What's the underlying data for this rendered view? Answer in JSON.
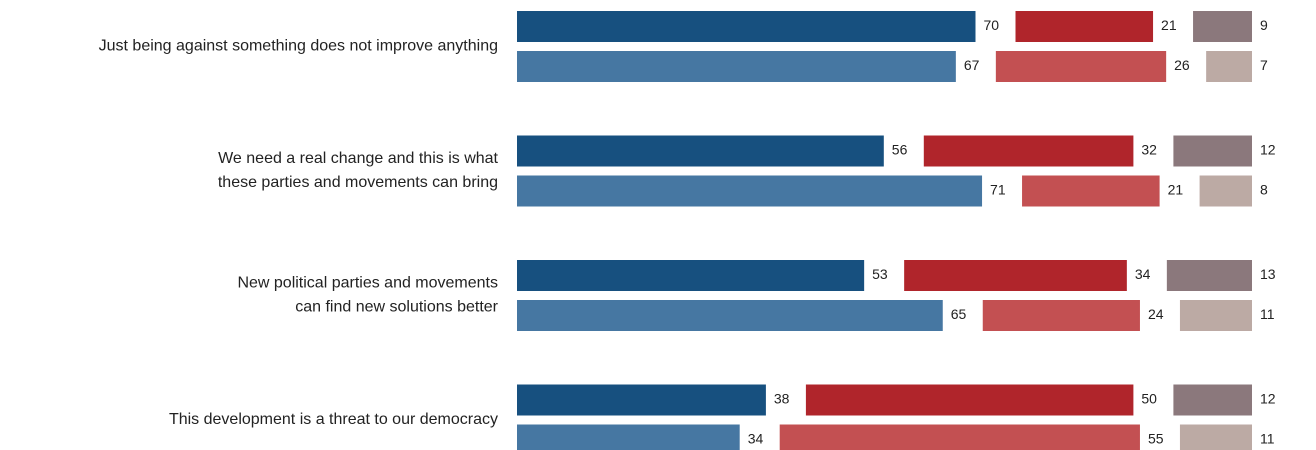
{
  "chart_data": {
    "type": "bar",
    "orientation": "horizontal",
    "stacked_segments": true,
    "categories": [
      [
        "Just being against something does not improve anything"
      ],
      [
        "We need a real change and this is what",
        "these parties and movements can bring"
      ],
      [
        "New political parties and movements",
        "can find new solutions better"
      ],
      [
        "This development is a threat to our democracy"
      ]
    ],
    "series": [
      {
        "colors": [
          "#17507f",
          "#b0252b",
          "#8b787c"
        ],
        "values": [
          [
            70,
            21,
            9
          ],
          [
            56,
            32,
            12
          ],
          [
            53,
            34,
            13
          ],
          [
            38,
            50,
            12
          ]
        ]
      },
      {
        "colors": [
          "#4677a2",
          "#c35052",
          "#bcaaa4"
        ],
        "values": [
          [
            67,
            26,
            7
          ],
          [
            71,
            21,
            8
          ],
          [
            65,
            24,
            11
          ],
          [
            34,
            55,
            11
          ]
        ]
      }
    ]
  }
}
